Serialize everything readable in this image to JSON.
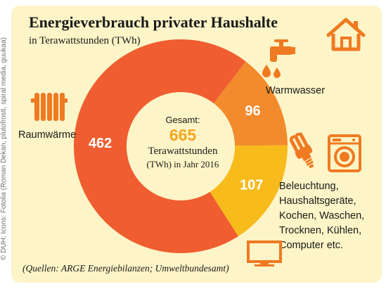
{
  "credit": "© DUH; Icons: Fotolia (Roman Dekan, plutofrosti, spiral media, guukaa)",
  "chart_data": {
    "type": "donut",
    "title": "Energieverbrauch privater Haushalte",
    "subtitle": "in Terawattstunden (TWh)",
    "unit": "TWh",
    "categories": [
      "Warmwasser",
      "Beleuchtung, Haushaltsgeräte, Kochen, Waschen, Trocknen, Kühlen, Computer etc.",
      "Raumwärme"
    ],
    "values": [
      96,
      107,
      462
    ],
    "value_labels": [
      "96",
      "107",
      "462"
    ],
    "labels": {
      "warmwasser": "Warmwasser",
      "beleuchtung": [
        "Beleuchtung,",
        "Haushaltsgeräte,",
        "Kochen, Waschen,",
        "Trocknen, Kühlen,",
        "Computer etc."
      ],
      "raumwaerme": "Raumwärme"
    },
    "colors": [
      "#f28b2d",
      "#f8bb1c",
      "#ef5d30"
    ],
    "center": {
      "line1": "Gesamt:",
      "total": "665",
      "line3": "Terawattstunden",
      "line4": "(TWh) in Jahr 2016"
    },
    "source": "(Quellen: ARGE Energiebilanzen; Umweltbundesamt)"
  },
  "icons": [
    "house-icon",
    "faucet-icon",
    "radiator-icon",
    "energy-saving-bulb-icon",
    "washing-machine-icon",
    "monitor-icon"
  ],
  "icon_color": "#ef7a22"
}
